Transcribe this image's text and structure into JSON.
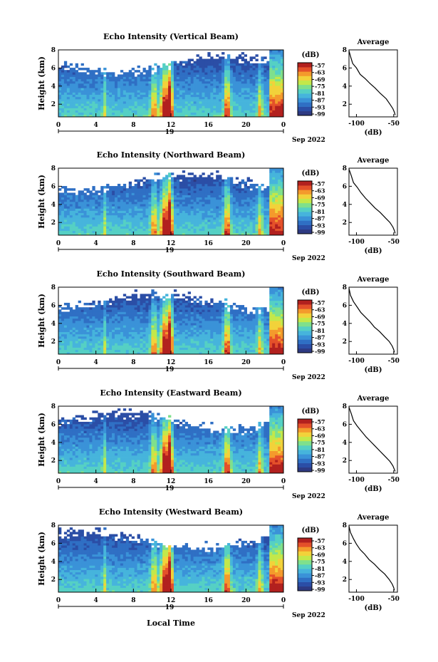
{
  "figure": {
    "date_label": "Sep 2022",
    "day_label": "19",
    "xlabel": "Local Time",
    "colorbar_unit": "(dB)",
    "colorbar_ticks": [
      -57,
      -63,
      -69,
      -75,
      -81,
      -87,
      -93,
      -99
    ],
    "profile_title": "Average",
    "profile_xlabel": "(dB)",
    "profile_xticks": [
      -100,
      -50
    ]
  },
  "chart_data": [
    {
      "type": "heatmap",
      "title": "Echo Intensity (Vertical Beam)",
      "ylabel": "Height (km)",
      "x_ticks": [
        "0",
        "4",
        "8",
        "12",
        "16",
        "20",
        "0"
      ],
      "y_ticks": [
        "2",
        "4",
        "6",
        "8"
      ],
      "xlim": [
        0,
        24
      ],
      "ylim": [
        0.6,
        8.0
      ],
      "colorbar": {
        "label": "(dB)",
        "range": [
          -99,
          -57
        ]
      },
      "profile": {
        "title": "Average",
        "xlabel": "(dB)",
        "xlim": [
          -110,
          -45
        ],
        "ylim": [
          0.6,
          8.0
        ],
        "x": [
          -110,
          -108,
          -105,
          -100,
          -95,
          -88,
          -82,
          -75,
          -68,
          -60,
          -55,
          -51,
          -49,
          -48
        ],
        "y": [
          7.9,
          7.3,
          6.5,
          6.0,
          5.3,
          4.8,
          4.3,
          3.8,
          3.2,
          2.6,
          2.0,
          1.5,
          1.1,
          0.8
        ]
      }
    },
    {
      "type": "heatmap",
      "title": "Echo Intensity (Northward Beam)",
      "ylabel": "Height (km)",
      "x_ticks": [
        "0",
        "4",
        "8",
        "12",
        "16",
        "20",
        "0"
      ],
      "y_ticks": [
        "2",
        "4",
        "6",
        "8"
      ],
      "xlim": [
        0,
        24
      ],
      "ylim": [
        0.6,
        8.0
      ],
      "colorbar": {
        "label": "(dB)",
        "range": [
          -99,
          -57
        ]
      },
      "profile": {
        "title": "Average",
        "xlabel": "(dB)",
        "xlim": [
          -110,
          -45
        ],
        "ylim": [
          0.6,
          8.0
        ],
        "x": [
          -110,
          -107,
          -104,
          -99,
          -94,
          -88,
          -82,
          -75,
          -68,
          -61,
          -55,
          -51,
          -49,
          -48
        ],
        "y": [
          7.9,
          7.2,
          6.4,
          5.9,
          5.3,
          4.7,
          4.2,
          3.6,
          3.1,
          2.5,
          2.0,
          1.5,
          1.1,
          0.8
        ]
      }
    },
    {
      "type": "heatmap",
      "title": "Echo Intensity (Southward Beam)",
      "ylabel": "Height (km)",
      "x_ticks": [
        "0",
        "4",
        "8",
        "12",
        "16",
        "20",
        "0"
      ],
      "y_ticks": [
        "2",
        "4",
        "6",
        "8"
      ],
      "xlim": [
        0,
        24
      ],
      "ylim": [
        0.6,
        8.0
      ],
      "colorbar": {
        "label": "(dB)",
        "range": [
          -99,
          -57
        ]
      },
      "profile": {
        "title": "Average",
        "xlabel": "(dB)",
        "xlim": [
          -110,
          -45
        ],
        "ylim": [
          0.6,
          8.0
        ],
        "x": [
          -110,
          -108,
          -104,
          -99,
          -94,
          -88,
          -82,
          -76,
          -69,
          -62,
          -56,
          -52,
          -50,
          -49
        ],
        "y": [
          7.9,
          7.1,
          6.4,
          5.8,
          5.2,
          4.7,
          4.2,
          3.6,
          3.1,
          2.5,
          2.0,
          1.5,
          1.1,
          0.8
        ]
      }
    },
    {
      "type": "heatmap",
      "title": "Echo Intensity (Eastward Beam)",
      "ylabel": "Height (km)",
      "x_ticks": [
        "0",
        "4",
        "8",
        "12",
        "16",
        "20",
        "0"
      ],
      "y_ticks": [
        "2",
        "4",
        "6",
        "8"
      ],
      "xlim": [
        0,
        24
      ],
      "ylim": [
        0.6,
        8.0
      ],
      "colorbar": {
        "label": "(dB)",
        "range": [
          -99,
          -57
        ]
      },
      "profile": {
        "title": "Average",
        "xlabel": "(dB)",
        "xlim": [
          -110,
          -45
        ],
        "ylim": [
          0.6,
          8.0
        ],
        "x": [
          -110,
          -107,
          -104,
          -99,
          -93,
          -87,
          -81,
          -75,
          -68,
          -61,
          -55,
          -51,
          -49,
          -48
        ],
        "y": [
          7.9,
          7.2,
          6.4,
          5.8,
          5.2,
          4.6,
          4.1,
          3.6,
          3.0,
          2.4,
          1.9,
          1.4,
          1.0,
          0.8
        ]
      }
    },
    {
      "type": "heatmap",
      "title": "Echo Intensity (Westward Beam)",
      "ylabel": "Height (km)",
      "x_ticks": [
        "0",
        "4",
        "8",
        "12",
        "16",
        "20",
        "0"
      ],
      "y_ticks": [
        "2",
        "4",
        "6",
        "8"
      ],
      "xlim": [
        0,
        24
      ],
      "ylim": [
        0.6,
        8.0
      ],
      "colorbar": {
        "label": "(dB)",
        "range": [
          -99,
          -57
        ]
      },
      "profile": {
        "title": "Average",
        "xlabel": "(dB)",
        "xlim": [
          -110,
          -45
        ],
        "ylim": [
          0.6,
          8.0
        ],
        "x": [
          -110,
          -108,
          -104,
          -100,
          -95,
          -89,
          -83,
          -76,
          -69,
          -62,
          -56,
          -52,
          -50,
          -49
        ],
        "y": [
          7.9,
          7.2,
          6.5,
          5.9,
          5.3,
          4.8,
          4.2,
          3.7,
          3.1,
          2.6,
          2.0,
          1.5,
          1.1,
          0.8
        ]
      }
    }
  ]
}
